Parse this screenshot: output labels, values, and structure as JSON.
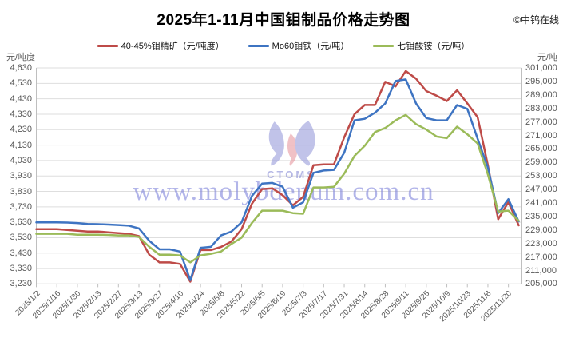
{
  "header": {
    "title": "2025年1-11月中国钼制品价格走势图",
    "copyright": "©中钨在线"
  },
  "legend": [
    {
      "label": "40-45%钼精矿（元/吨度）",
      "color": "#BE4B48"
    },
    {
      "label": "Mo60钼铁（元/吨）",
      "color": "#3E74C2"
    },
    {
      "label": "七钼酸铵（元/吨）",
      "color": "#9BBB59"
    }
  ],
  "axes": {
    "left_unit": "元/吨度",
    "right_unit": "元/吨",
    "left_ticks": [
      "4,630",
      "4,530",
      "4,430",
      "4,330",
      "4,230",
      "4,130",
      "4,030",
      "3,930",
      "3,830",
      "3,730",
      "3,630",
      "3,530",
      "3,430",
      "3,330",
      "3,230"
    ],
    "right_ticks": [
      "301,000",
      "295,000",
      "289,000",
      "283,000",
      "277,000",
      "271,000",
      "265,000",
      "259,000",
      "253,000",
      "247,000",
      "241,000",
      "235,000",
      "229,000",
      "223,000",
      "217,000",
      "211,000",
      "205,000"
    ]
  },
  "watermark": {
    "logo_text": "CTOMS",
    "url_text": "www.molybdenum.com.cn"
  },
  "chart_data": {
    "type": "line",
    "title": "2025年1-11月中国钼制品价格走势图",
    "x": [
      "2025/1/2",
      "2025/1/9",
      "2025/1/16",
      "2025/1/23",
      "2025/1/30",
      "2025/2/6",
      "2025/2/13",
      "2025/2/20",
      "2025/2/27",
      "2025/3/6",
      "2025/3/13",
      "2025/3/20",
      "2025/3/27",
      "2025/4/3",
      "2025/4/10",
      "2025/4/17",
      "2025/4/24",
      "2025/5/1",
      "2025/5/8",
      "2025/5/15",
      "2025/5/22",
      "2025/5/29",
      "2025/6/5",
      "2025/6/12",
      "2025/6/19",
      "2025/6/26",
      "2025/7/3",
      "2025/7/10",
      "2025/7/17",
      "2025/7/24",
      "2025/7/31",
      "2025/8/7",
      "2025/8/14",
      "2025/8/21",
      "2025/8/28",
      "2025/9/4",
      "2025/9/11",
      "2025/9/18",
      "2025/9/25",
      "2025/10/2",
      "2025/10/9",
      "2025/10/16",
      "2025/10/23",
      "2025/10/30",
      "2025/11/6",
      "2025/11/13",
      "2025/11/20",
      "2025/11/27"
    ],
    "x_tick_labels": [
      "2025/1/2",
      "2025/1/16",
      "2025/1/30",
      "2025/2/13",
      "2025/2/27",
      "2025/3/13",
      "2025/3/27",
      "2025/4/10",
      "2025/4/24",
      "2025/5/8",
      "2025/5/22",
      "2025/6/5",
      "2025/6/19",
      "2025/7/3",
      "2025/7/17",
      "2025/7/31",
      "2025/8/14",
      "2025/8/28",
      "2025/9/11",
      "2025/9/25",
      "2025/10/9",
      "2025/10/23",
      "2025/11/6",
      "2025/11/20"
    ],
    "left_axis": {
      "min": 3230,
      "max": 4630,
      "step": 100,
      "unit": "元/吨度"
    },
    "right_axis": {
      "min": 205000,
      "max": 301000,
      "step": 6000,
      "unit": "元/吨"
    },
    "grid": true,
    "legend_position": "top",
    "series": [
      {
        "name": "40-45%钼精矿（元/吨度）",
        "axis": "left",
        "color": "#BE4B48",
        "values": [
          3585,
          3585,
          3585,
          3580,
          3575,
          3570,
          3570,
          3565,
          3560,
          3555,
          3540,
          3420,
          3370,
          3370,
          3360,
          3245,
          3450,
          3450,
          3470,
          3505,
          3585,
          3750,
          3845,
          3850,
          3805,
          3740,
          3795,
          4000,
          4005,
          4005,
          4180,
          4330,
          4390,
          4390,
          4540,
          4510,
          4610,
          4560,
          4480,
          4450,
          4415,
          4485,
          4400,
          4310,
          4000,
          3650,
          3760,
          3610
        ]
      },
      {
        "name": "Mo60钼铁（元/吨）",
        "axis": "right",
        "color": "#3E74C2",
        "values": [
          232400,
          232400,
          232400,
          232300,
          232100,
          231700,
          231600,
          231400,
          231200,
          230900,
          229700,
          224200,
          220400,
          220400,
          219400,
          206700,
          221100,
          221500,
          226600,
          228300,
          232400,
          244100,
          249600,
          249900,
          248200,
          238900,
          241300,
          254400,
          255400,
          255700,
          263300,
          277700,
          278400,
          281100,
          285200,
          295200,
          295900,
          285200,
          278700,
          277700,
          277700,
          284500,
          282800,
          269500,
          256800,
          236500,
          242700,
          232800
        ]
      },
      {
        "name": "七钼酸铵（元/吨）",
        "axis": "right",
        "color": "#9BBB59",
        "values": [
          227300,
          227300,
          227300,
          227300,
          226900,
          226900,
          226900,
          226800,
          226600,
          226600,
          225900,
          221500,
          218000,
          218000,
          217700,
          214600,
          217700,
          218400,
          219400,
          222800,
          225600,
          232100,
          237600,
          237600,
          237600,
          236500,
          236200,
          247900,
          247900,
          248200,
          254000,
          261900,
          266400,
          272500,
          274300,
          277700,
          280100,
          276000,
          273600,
          270500,
          269800,
          274900,
          271500,
          267400,
          253700,
          237200,
          237600,
          233100
        ]
      }
    ]
  }
}
